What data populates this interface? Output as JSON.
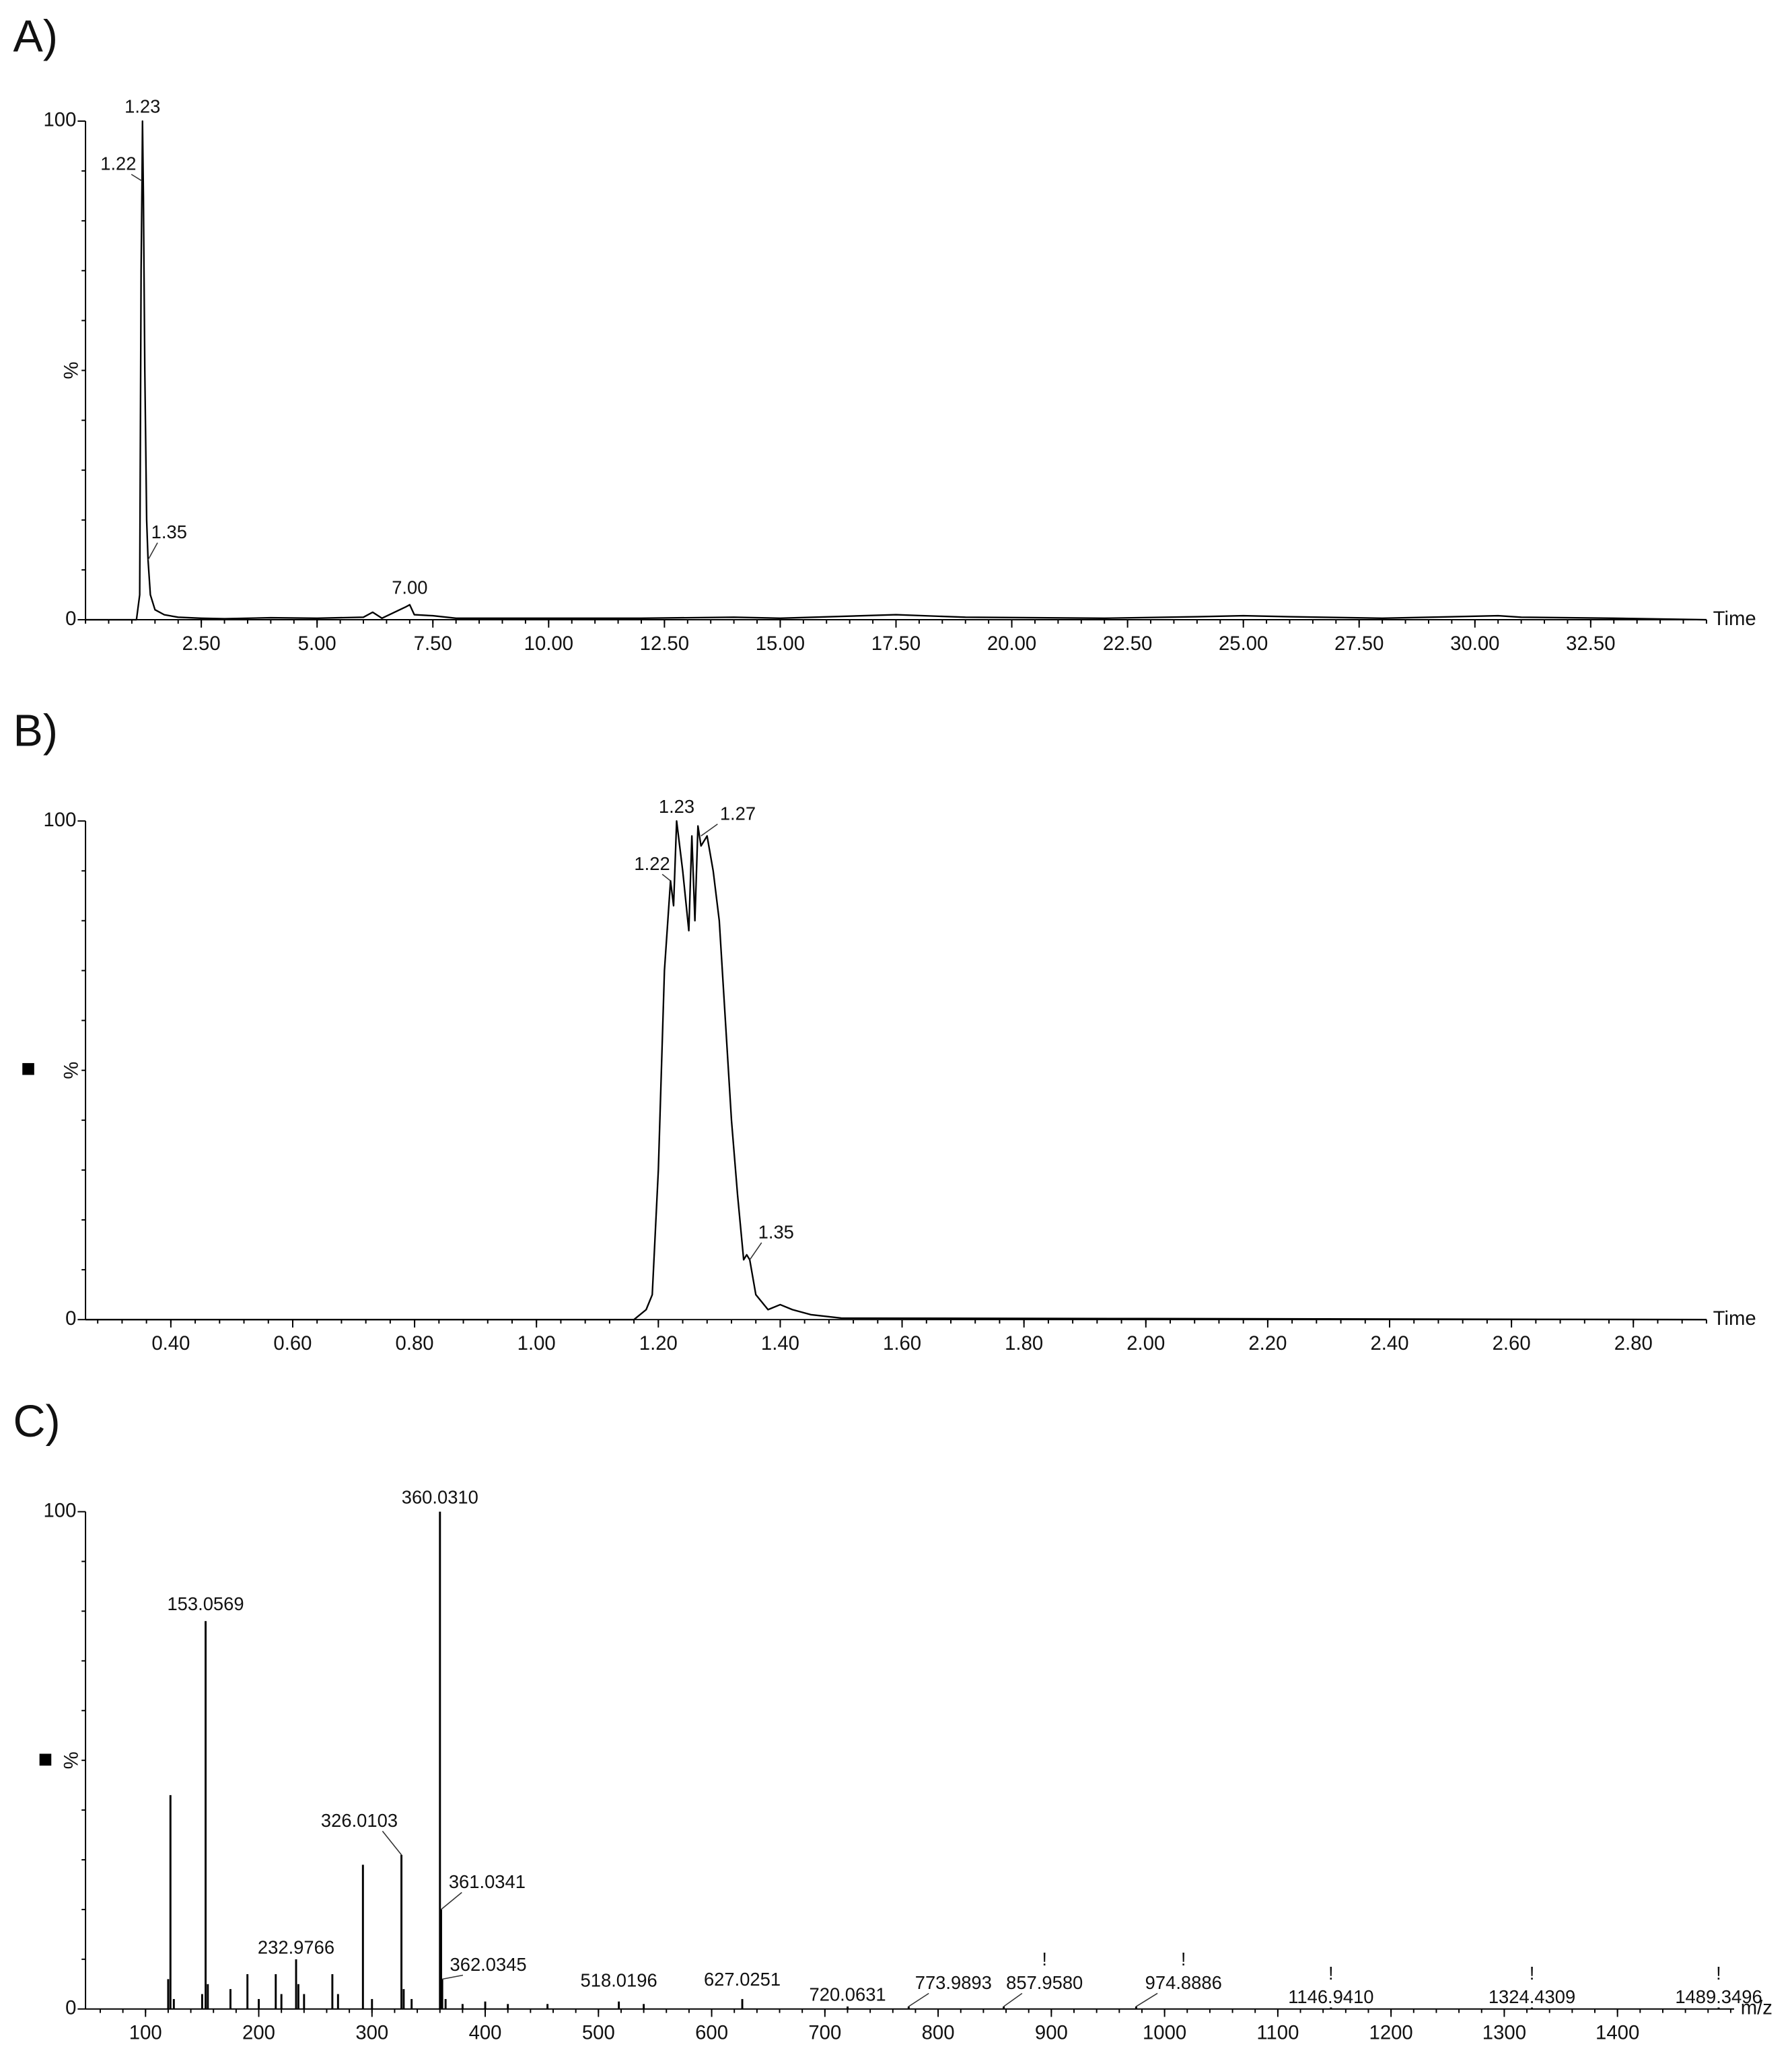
{
  "chart_data": [
    {
      "type": "line",
      "panel": "A)",
      "ylabel": "%",
      "xlabel": "Time",
      "color": "#000000",
      "xlim": [
        0,
        35
      ],
      "ylim": [
        0,
        100
      ],
      "yticks": [
        0,
        100
      ],
      "xticks": [
        {
          "value": 2.5,
          "label": "2.50"
        },
        {
          "value": 5,
          "label": "5.00"
        },
        {
          "value": 7.5,
          "label": "7.50"
        },
        {
          "value": 10,
          "label": "10.00"
        },
        {
          "value": 12.5,
          "label": "12.50"
        },
        {
          "value": 15,
          "label": "15.00"
        },
        {
          "value": 17.5,
          "label": "17.50"
        },
        {
          "value": 20,
          "label": "20.00"
        },
        {
          "value": 22.5,
          "label": "22.50"
        },
        {
          "value": 25,
          "label": "25.00"
        },
        {
          "value": 27.5,
          "label": "27.50"
        },
        {
          "value": 30,
          "label": "30.00"
        },
        {
          "value": 32.5,
          "label": "32.50"
        }
      ],
      "x": [
        0,
        1.1,
        1.17,
        1.2,
        1.22,
        1.23,
        1.25,
        1.28,
        1.32,
        1.35,
        1.4,
        1.5,
        1.7,
        2.0,
        2.5,
        3.0,
        4.0,
        5.0,
        6.0,
        6.2,
        6.4,
        6.9,
        7.0,
        7.1,
        7.5,
        8.0,
        10,
        12,
        14,
        15,
        17.5,
        19,
        22,
        24,
        25,
        26,
        28,
        30.5,
        31,
        33,
        35
      ],
      "values": [
        0,
        0,
        5,
        70,
        88,
        100,
        85,
        50,
        20,
        12,
        5,
        2,
        1,
        0.5,
        0.3,
        0.2,
        0.4,
        0.3,
        0.5,
        1.5,
        0.3,
        2.5,
        3,
        1,
        0.8,
        0.3,
        0.3,
        0.3,
        0.5,
        0.3,
        1,
        0.5,
        0.3,
        0.6,
        0.8,
        0.6,
        0.3,
        0.8,
        0.5,
        0.3,
        0
      ],
      "annotations": [
        {
          "x": 1.23,
          "y": 100,
          "label": "1.23"
        },
        {
          "x": 1.22,
          "y": 88,
          "label": "1.22"
        },
        {
          "x": 1.35,
          "y": 12,
          "label": "1.35"
        },
        {
          "x": 7.0,
          "y": 3,
          "label": "7.00"
        }
      ]
    },
    {
      "type": "line",
      "panel": "B)",
      "ylabel": "%",
      "xlabel": "Time",
      "color": "#000000",
      "xlim": [
        0.26,
        2.92
      ],
      "ylim": [
        0,
        100
      ],
      "yticks": [
        0,
        100
      ],
      "xticks": [
        {
          "value": 0.4,
          "label": "0.40"
        },
        {
          "value": 0.6,
          "label": "0.60"
        },
        {
          "value": 0.8,
          "label": "0.80"
        },
        {
          "value": 1.0,
          "label": "1.00"
        },
        {
          "value": 1.2,
          "label": "1.20"
        },
        {
          "value": 1.4,
          "label": "1.40"
        },
        {
          "value": 1.6,
          "label": "1.60"
        },
        {
          "value": 1.8,
          "label": "1.80"
        },
        {
          "value": 2.0,
          "label": "2.00"
        },
        {
          "value": 2.2,
          "label": "2.20"
        },
        {
          "value": 2.4,
          "label": "2.40"
        },
        {
          "value": 2.6,
          "label": "2.60"
        },
        {
          "value": 2.8,
          "label": "2.80"
        }
      ],
      "x": [
        0.26,
        1.16,
        1.18,
        1.19,
        1.2,
        1.21,
        1.22,
        1.225,
        1.23,
        1.24,
        1.25,
        1.255,
        1.26,
        1.265,
        1.27,
        1.28,
        1.29,
        1.3,
        1.31,
        1.32,
        1.33,
        1.34,
        1.345,
        1.35,
        1.36,
        1.38,
        1.4,
        1.42,
        1.45,
        1.5,
        2.0,
        2.92
      ],
      "values": [
        0,
        0,
        2,
        5,
        30,
        70,
        88,
        83,
        100,
        90,
        78,
        97,
        80,
        99,
        95,
        97,
        90,
        80,
        60,
        40,
        25,
        12,
        13,
        12,
        5,
        2,
        3,
        2,
        1,
        0.3,
        0.2,
        0
      ],
      "annotations": [
        {
          "x": 1.23,
          "y": 100,
          "label": "1.23"
        },
        {
          "x": 1.22,
          "y": 88,
          "label": "1.22"
        },
        {
          "x": 1.27,
          "y": 97,
          "label": "1.27"
        },
        {
          "x": 1.35,
          "y": 12,
          "label": "1.35"
        }
      ]
    },
    {
      "type": "stick",
      "panel": "C)",
      "ylabel": "%",
      "xlabel": "m/z",
      "color": "#000000",
      "xlim": [
        47,
        1503
      ],
      "ylim": [
        0,
        100
      ],
      "yticks": [
        0,
        100
      ],
      "xticks": [
        100,
        200,
        300,
        400,
        500,
        600,
        700,
        800,
        900,
        1000,
        1100,
        1200,
        1300,
        1400
      ],
      "x": [
        120,
        122,
        125,
        150,
        153.0569,
        155,
        175,
        190,
        200,
        215,
        220,
        232.9766,
        235,
        240,
        265,
        270,
        292,
        300,
        326.0103,
        328,
        335,
        360.031,
        361.0341,
        362.0345,
        365,
        380,
        400,
        420,
        455,
        518.0196,
        540,
        627.0251,
        720.0631,
        773.9893,
        857.958,
        974.8886,
        1146.941,
        1324.4309,
        1489.3496
      ],
      "values": [
        6,
        43,
        2,
        3,
        78,
        5,
        4,
        7,
        2,
        7,
        3,
        10,
        5,
        3,
        7,
        3,
        29,
        2,
        31,
        4,
        2,
        100,
        20,
        6,
        2,
        1,
        1.5,
        1,
        1,
        1.5,
        1,
        2,
        0.5,
        0.5,
        0.5,
        0.5,
        0.3,
        0.3,
        0.3
      ],
      "annotations": [
        {
          "x": 360.031,
          "y": 100,
          "label": "360.0310"
        },
        {
          "x": 153.0569,
          "y": 78,
          "label": "153.0569"
        },
        {
          "x": 326.0103,
          "y": 31,
          "label": "326.0103"
        },
        {
          "x": 361.0341,
          "y": 20,
          "label": "361.0341"
        },
        {
          "x": 232.9766,
          "y": 10,
          "label": "232.9766"
        },
        {
          "x": 362.0345,
          "y": 6,
          "label": "362.0345"
        },
        {
          "x": 518.0196,
          "y": 1.5,
          "label": "518.0196"
        },
        {
          "x": 627.0251,
          "y": 2,
          "label": "627.0251"
        },
        {
          "x": 720.0631,
          "y": 0.5,
          "label": "720.0631"
        },
        {
          "x": 773.9893,
          "y": 0.5,
          "label": "773.9893"
        },
        {
          "x": 857.958,
          "y": 0.5,
          "label": "857.9580",
          "flag": "!"
        },
        {
          "x": 974.8886,
          "y": 0.5,
          "label": "974.8886",
          "flag": "!"
        },
        {
          "x": 1146.941,
          "y": 0.3,
          "label": "1146.9410",
          "flag": "!"
        },
        {
          "x": 1324.4309,
          "y": 0.3,
          "label": "1324.4309",
          "flag": "!"
        },
        {
          "x": 1489.3496,
          "y": 0.3,
          "label": "1489.3496",
          "flag": "!"
        }
      ]
    }
  ]
}
